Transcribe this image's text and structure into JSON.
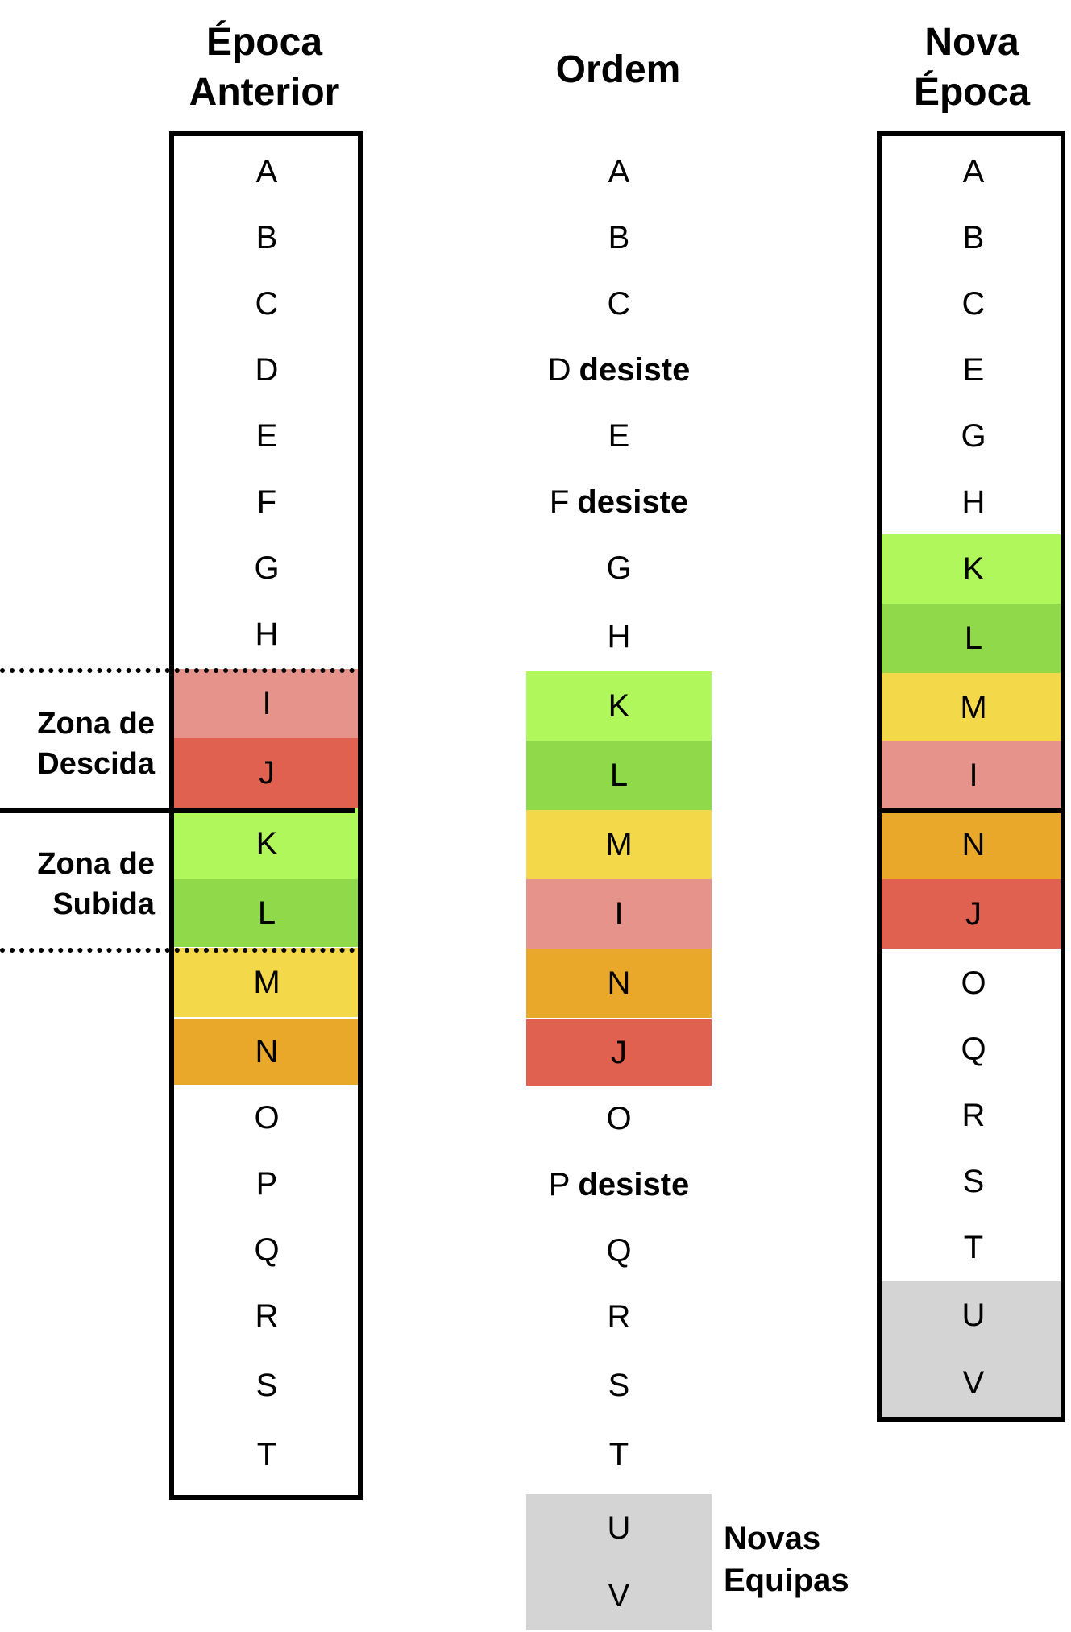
{
  "colors": {
    "light_green": "#b0f75c",
    "green": "#8fd94a",
    "yellow": "#f3d84a",
    "pink": "#e6948b",
    "orange": "#e9a82a",
    "red": "#e06150",
    "gray": "#d4d4d4"
  },
  "headers": {
    "previous": [
      "Época",
      "Anterior"
    ],
    "order": [
      "Ordem"
    ],
    "new": [
      "Nova",
      "Época"
    ]
  },
  "withdraw_word": "desiste",
  "zones": {
    "relegation": [
      "Zona de",
      "Descida"
    ],
    "promotion": [
      "Zona de",
      "Subida"
    ]
  },
  "new_teams_label": [
    "Novas",
    "Equipas"
  ],
  "columns": {
    "previous": [
      {
        "label": "A"
      },
      {
        "label": "B"
      },
      {
        "label": "C"
      },
      {
        "label": "D"
      },
      {
        "label": "E"
      },
      {
        "label": "F"
      },
      {
        "label": "G"
      },
      {
        "label": "H"
      },
      {
        "label": "I",
        "color": "pink"
      },
      {
        "label": "J",
        "color": "red"
      },
      {
        "label": "K",
        "color": "light_green"
      },
      {
        "label": "L",
        "color": "green"
      },
      {
        "label": "M",
        "color": "yellow"
      },
      {
        "label": "N",
        "color": "orange"
      },
      {
        "label": "O"
      },
      {
        "label": "P"
      },
      {
        "label": "Q"
      },
      {
        "label": "R"
      },
      {
        "label": "S"
      },
      {
        "label": "T"
      }
    ],
    "order": [
      {
        "label": "A"
      },
      {
        "label": "B"
      },
      {
        "label": "C"
      },
      {
        "label": "D",
        "withdraws": true
      },
      {
        "label": "E"
      },
      {
        "label": "F",
        "withdraws": true
      },
      {
        "label": "G"
      },
      {
        "label": "H"
      },
      {
        "label": "K",
        "color": "light_green"
      },
      {
        "label": "L",
        "color": "green"
      },
      {
        "label": "M",
        "color": "yellow"
      },
      {
        "label": "I",
        "color": "pink"
      },
      {
        "label": "N",
        "color": "orange"
      },
      {
        "label": "J",
        "color": "red"
      },
      {
        "label": "O"
      },
      {
        "label": "P",
        "withdraws": true
      },
      {
        "label": "Q"
      },
      {
        "label": "R"
      },
      {
        "label": "S"
      },
      {
        "label": "T"
      },
      {
        "label": "U",
        "color": "gray"
      },
      {
        "label": "V",
        "color": "gray"
      }
    ],
    "new": [
      {
        "label": "A"
      },
      {
        "label": "B"
      },
      {
        "label": "C"
      },
      {
        "label": "E"
      },
      {
        "label": "G"
      },
      {
        "label": "H"
      },
      {
        "label": "K",
        "color": "light_green"
      },
      {
        "label": "L",
        "color": "green"
      },
      {
        "label": "M",
        "color": "yellow"
      },
      {
        "label": "I",
        "color": "pink"
      },
      {
        "label": "N",
        "color": "orange"
      },
      {
        "label": "J",
        "color": "red"
      },
      {
        "label": "O"
      },
      {
        "label": "Q"
      },
      {
        "label": "R"
      },
      {
        "label": "S"
      },
      {
        "label": "T"
      },
      {
        "label": "U",
        "color": "gray"
      },
      {
        "label": "V",
        "color": "gray"
      }
    ]
  }
}
